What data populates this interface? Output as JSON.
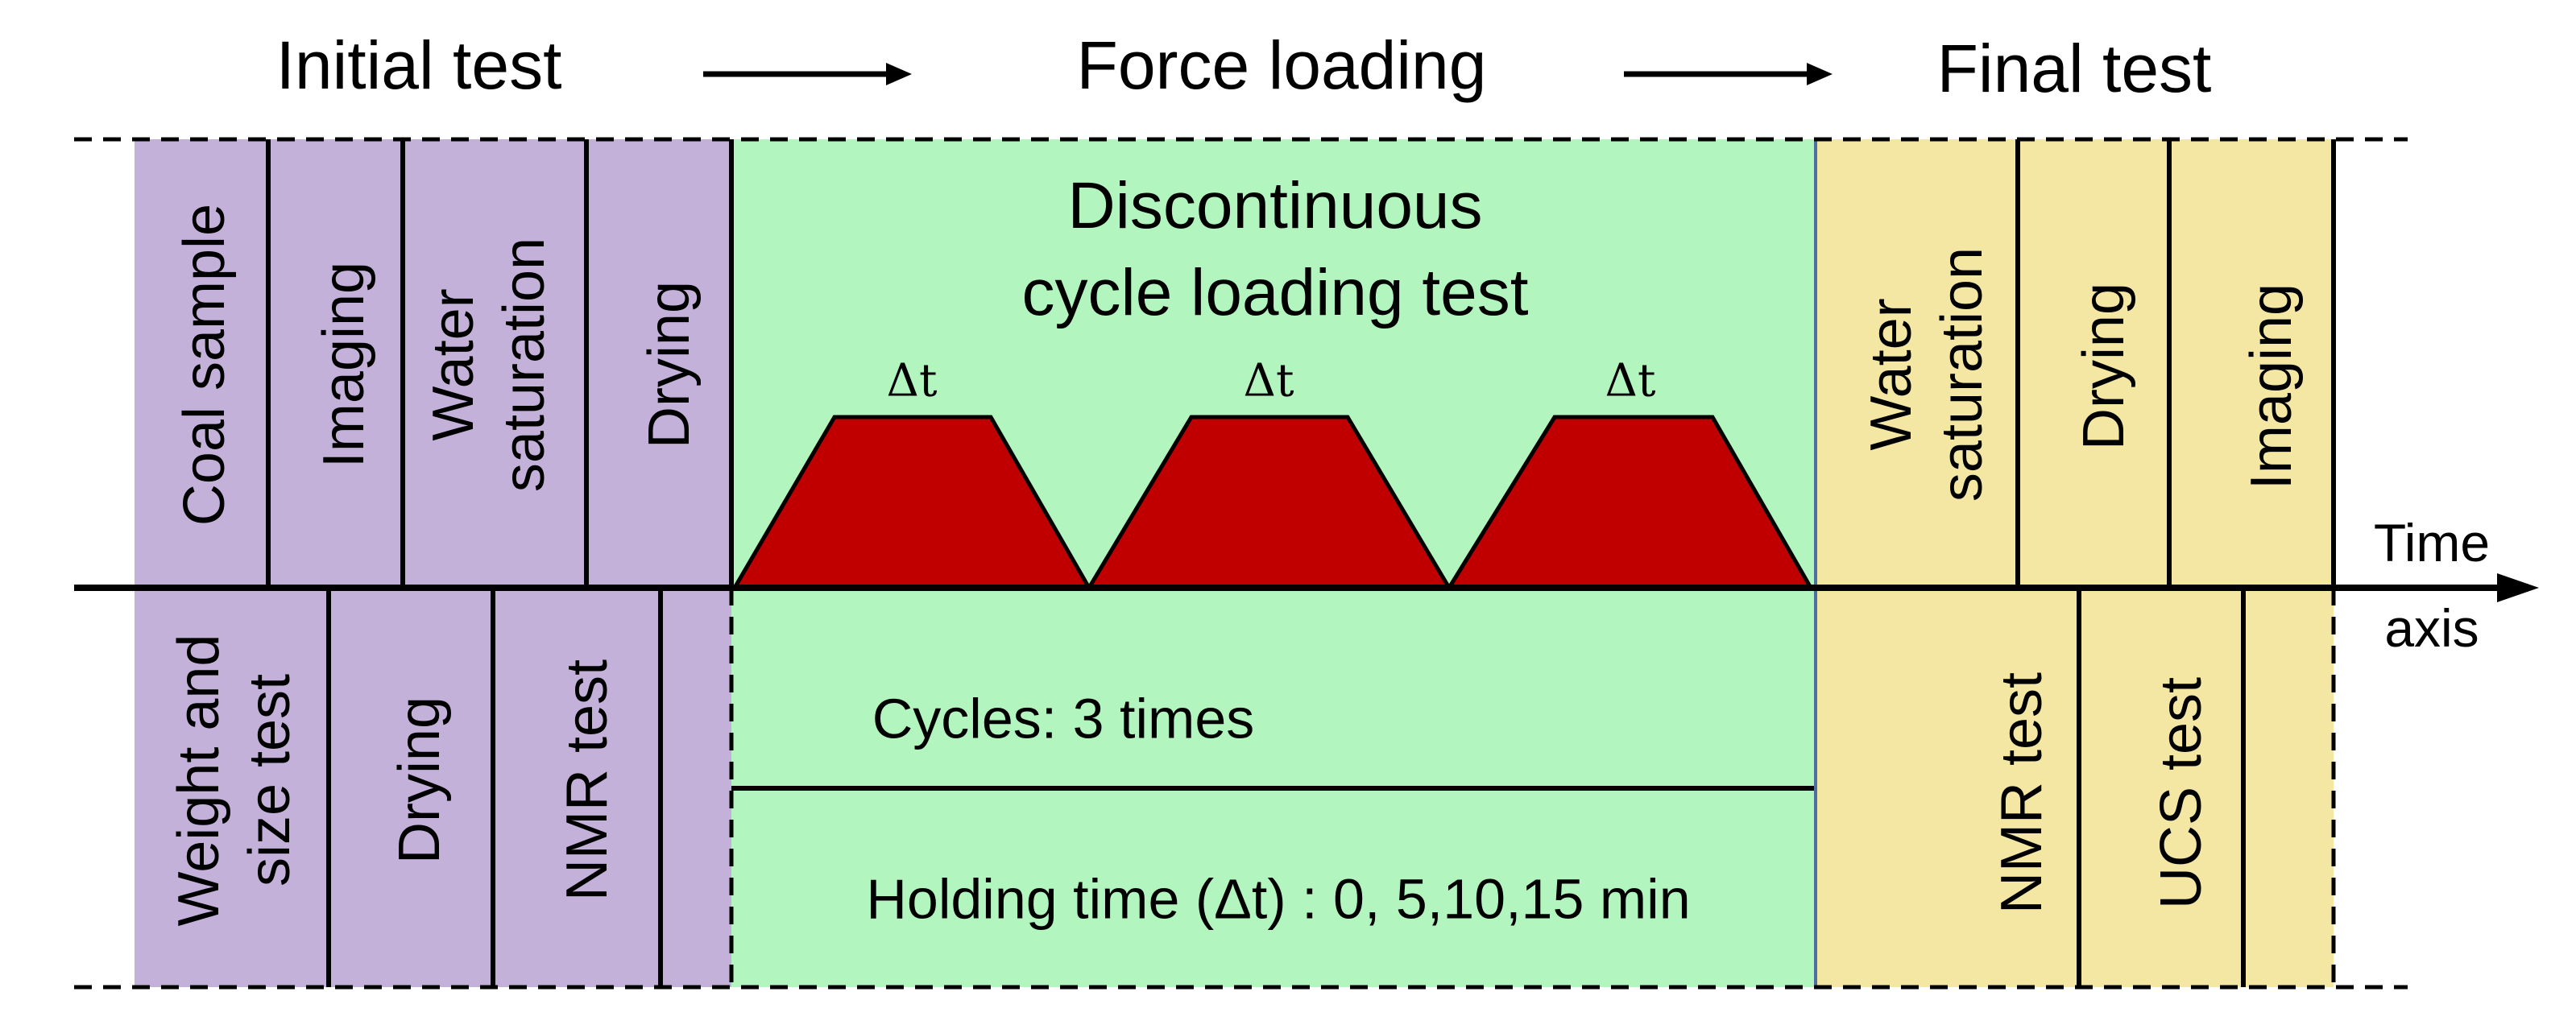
{
  "header": {
    "stages": [
      "Initial test",
      "Force loading",
      "Final test"
    ]
  },
  "initial": {
    "top": [
      [
        "Coal sample"
      ],
      [
        "Imaging"
      ],
      [
        "Water",
        "saturation"
      ],
      [
        "Drying"
      ]
    ],
    "bottom": [
      [
        "Weight and",
        "size test"
      ],
      [
        "Drying"
      ],
      [
        "NMR test"
      ]
    ]
  },
  "loading": {
    "title": [
      "Discontinuous",
      "cycle loading test"
    ],
    "holds": [
      "Δt",
      "Δt",
      "Δt"
    ],
    "cycles": "Cycles:  3 times",
    "holding": "Holding time (Δt) : 0, 5,10,15 min"
  },
  "final": {
    "top": [
      [
        "Water",
        "saturation"
      ],
      [
        "Drying"
      ],
      [
        "Imaging"
      ]
    ],
    "bottom": [
      [
        "NMR test"
      ],
      [
        "UCS test"
      ]
    ]
  },
  "axis_label": [
    "Time",
    "axis"
  ]
}
